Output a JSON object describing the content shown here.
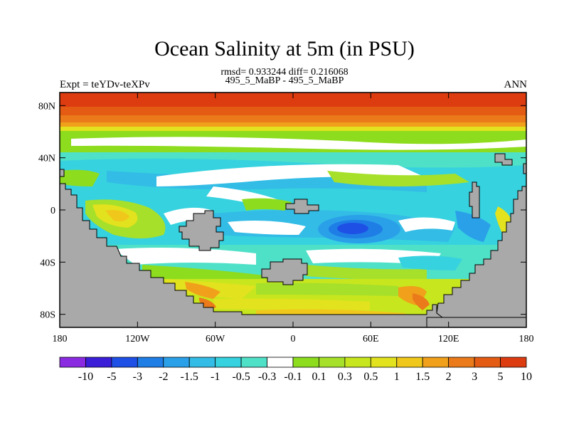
{
  "title": "Ocean Salinity at 5m (in PSU)",
  "stats_line": "rmsd= 0.933244 diff= 0.216068",
  "subtitle": "495_5_MaBP - 495_5_MaBP",
  "left_label": "Expt = teYDv-teXPv",
  "right_label": "ANN",
  "lat_ticks": [
    "80N",
    "40N",
    "0",
    "40S",
    "80S"
  ],
  "lon_ticks": [
    "180",
    "120W",
    "60W",
    "0",
    "60E",
    "120E",
    "180"
  ],
  "colorbar": {
    "labels": [
      "-10",
      "-5",
      "-3",
      "-2",
      "-1.5",
      "-1",
      "-0.5",
      "-0.3",
      "-0.1",
      "0.1",
      "0.3",
      "0.5",
      "1",
      "1.5",
      "2",
      "3",
      "5",
      "10"
    ],
    "colors": [
      "#8a2be2",
      "#3a1ed8",
      "#1e50e6",
      "#1f7de6",
      "#2aa0e8",
      "#33bce6",
      "#36d2df",
      "#4fe0c8",
      "#ffffff",
      "#8ddc1e",
      "#a6e02a",
      "#c8e61e",
      "#e2e21e",
      "#f0c81c",
      "#f0a01a",
      "#ea7a1a",
      "#e45c14",
      "#dc3c10"
    ]
  },
  "land_color": "#a9a9a9"
}
